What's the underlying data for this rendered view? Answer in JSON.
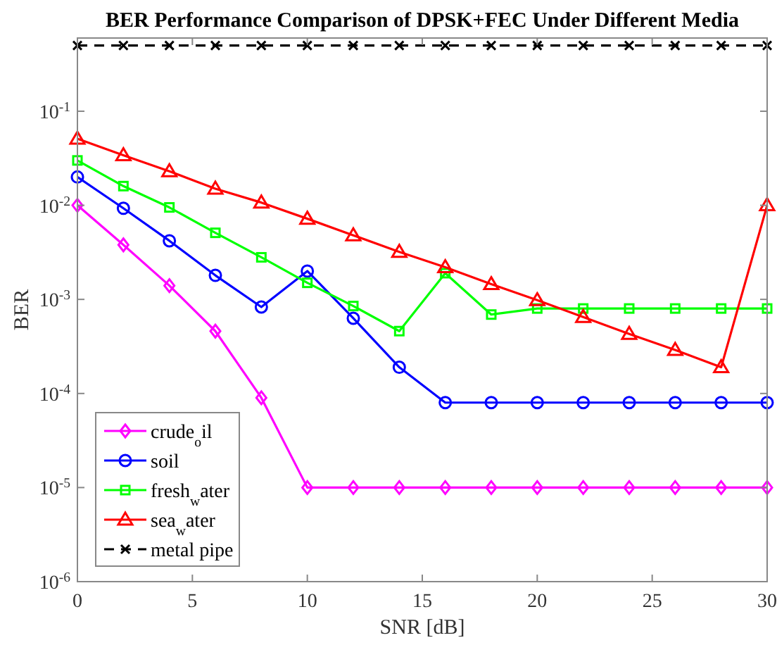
{
  "chart_data": {
    "type": "line",
    "title": "BER Performance Comparison of DPSK+FEC Under Different Media",
    "xlabel": "SNR [dB]",
    "ylabel": "BER",
    "x": [
      0,
      2,
      4,
      6,
      8,
      10,
      12,
      14,
      16,
      18,
      20,
      22,
      24,
      26,
      28,
      30
    ],
    "series": [
      {
        "name": "crude$_{o}$il",
        "color": "#ff00ff",
        "marker": "diamond",
        "values": [
          0.01,
          0.0038,
          0.0014,
          0.00046,
          9e-05,
          1e-05,
          1e-05,
          1e-05,
          1e-05,
          1e-05,
          1e-05,
          1e-05,
          1e-05,
          1e-05,
          1e-05,
          1e-05
        ]
      },
      {
        "name": "soil",
        "color": "#0000ff",
        "marker": "circle",
        "values": [
          0.02,
          0.0093,
          0.0042,
          0.0018,
          0.00083,
          0.002,
          0.00063,
          0.00019,
          8e-05,
          8e-05,
          8e-05,
          8e-05,
          8e-05,
          8e-05,
          8e-05,
          8e-05
        ]
      },
      {
        "name": "fresh$_{w}$ater",
        "color": "#00ff00",
        "marker": "square",
        "values": [
          0.03,
          0.016,
          0.0095,
          0.0051,
          0.0028,
          0.0015,
          0.00085,
          0.00046,
          0.0019,
          0.00069,
          0.0008,
          0.0008,
          0.0008,
          0.0008,
          0.0008,
          0.0008
        ]
      },
      {
        "name": "sea$_{w}$ater",
        "color": "#ff0000",
        "marker": "triangle",
        "values": [
          0.051,
          0.034,
          0.023,
          0.015,
          0.0107,
          0.0072,
          0.0048,
          0.0032,
          0.0022,
          0.00145,
          0.00098,
          0.00065,
          0.00043,
          0.00029,
          0.00019,
          0.01
        ]
      },
      {
        "name": "metal pipe",
        "color": "#000000",
        "marker": "cross",
        "line_style": "dashed",
        "values": [
          0.5,
          0.5,
          0.5,
          0.5,
          0.5,
          0.5,
          0.5,
          0.5,
          0.5,
          0.5,
          0.5,
          0.5,
          0.5,
          0.5,
          0.5,
          0.5
        ]
      }
    ],
    "log": "y",
    "xlim": [
      0,
      30
    ],
    "xticks": [
      0,
      5,
      10,
      15,
      20,
      25,
      30
    ],
    "ylim": [
      1e-06,
      0.6
    ],
    "yticks": [
      {
        "value": 1e-06,
        "label": "10$^{-6}$"
      },
      {
        "value": 1e-05,
        "label": "10$^{-5}$"
      },
      {
        "value": 0.0001,
        "label": "10$^{-4}$"
      },
      {
        "value": 0.001,
        "label": "10$^{-3}$"
      },
      {
        "value": 0.01,
        "label": "10$^{-2}$"
      },
      {
        "value": 0.1,
        "label": "10$^{-1}$"
      }
    ],
    "grid": false,
    "legend": "bottom left"
  }
}
